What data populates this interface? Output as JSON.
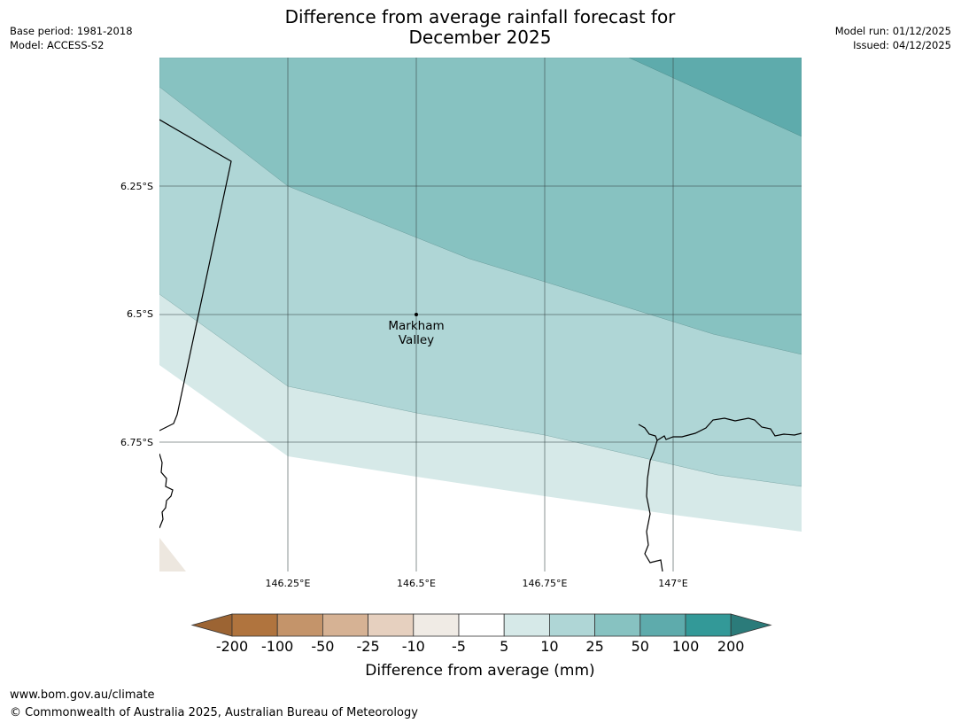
{
  "title_line1": "Difference from average rainfall forecast for",
  "title_line2": "December 2025",
  "meta_left": {
    "base_period": "Base period: 1981-2018",
    "model": "Model: ACCESS-S2"
  },
  "meta_right": {
    "model_run": "Model run: 01/12/2025",
    "issued": "Issued: 04/12/2025"
  },
  "map": {
    "lat_labels": [
      "6.25°S",
      "6.5°S",
      "6.75°S"
    ],
    "lon_labels": [
      "146.25°E",
      "146.5°E",
      "146.75°E",
      "147°E"
    ],
    "place": {
      "line1": "Markham",
      "line2": "Valley"
    }
  },
  "legend": {
    "ticks": [
      "-200",
      "-100",
      "-50",
      "-25",
      "-10",
      "-5",
      "5",
      "10",
      "25",
      "50",
      "100",
      "200"
    ],
    "colors": [
      "#9c6433",
      "#b0743e",
      "#c4946a",
      "#d6b294",
      "#e6d0bf",
      "#f0ebe5",
      "#ffffff",
      "#d6e9e8",
      "#afd6d6",
      "#87c2c1",
      "#5eabac",
      "#339998",
      "#2b7b7a"
    ],
    "title": "Difference from average (mm)"
  },
  "footer": {
    "url": "www.bom.gov.au/climate",
    "copyright": "© Commonwealth of Australia 2025, Australian Bureau of Meteorology"
  }
}
